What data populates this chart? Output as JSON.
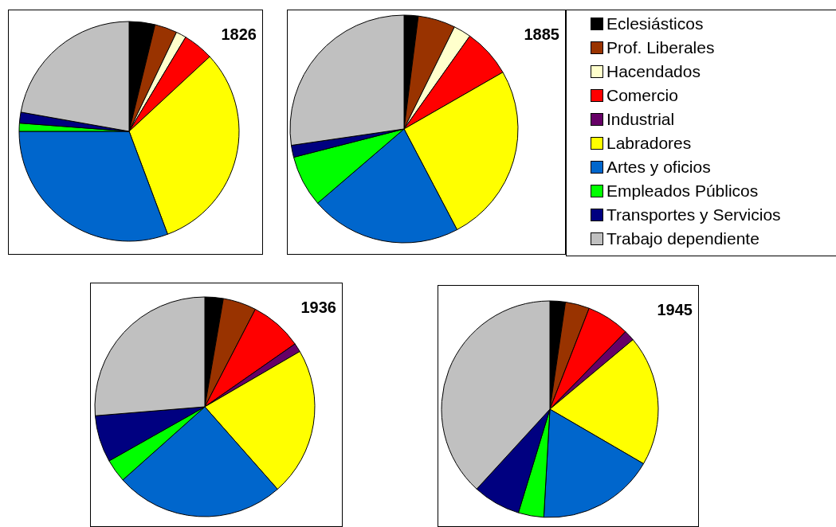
{
  "chart_data": [
    {
      "type": "pie",
      "title": "1826",
      "legend": false,
      "categories": [
        null,
        null,
        null,
        null,
        null,
        null,
        null,
        null,
        null,
        null
      ],
      "values": [
        3.8,
        3.3,
        1.5,
        4.5,
        0,
        31.2,
        30.7,
        1.2,
        1.6,
        22.2
      ],
      "colors": [
        "#000000",
        "#993300",
        "#ffffcc",
        "#ff0000",
        "#660066",
        "#ffff00",
        "#0066cc",
        "#00ff00",
        "#000080",
        "#c0c0c0"
      ]
    },
    {
      "type": "pie",
      "title": "1885",
      "legend": "right",
      "categories": [
        "Eclesiásticos",
        "Prof. Liberales",
        "Hacendados",
        "Comercio",
        "Industrial",
        "Labradores",
        "Artes y oficios",
        "Empleados Públicos",
        "Transportes y Servicios",
        "Trabajo dependiente"
      ],
      "values": [
        2,
        5.3,
        2.5,
        6.9,
        0,
        25.6,
        21.4,
        7.3,
        1.7,
        27.3
      ],
      "colors": [
        "#000000",
        "#993300",
        "#ffffcc",
        "#ff0000",
        "#660066",
        "#ffff00",
        "#0066cc",
        "#00ff00",
        "#000080",
        "#c0c0c0"
      ]
    },
    {
      "type": "pie",
      "title": "1936",
      "legend": false,
      "categories": [
        null,
        null,
        null,
        null,
        null,
        null,
        null,
        null,
        null,
        null
      ],
      "values": [
        2.7,
        4.9,
        0,
        7.7,
        1.3,
        21.9,
        24.9,
        3.4,
        6.9,
        26.3
      ],
      "colors": [
        "#000000",
        "#993300",
        "#ffffcc",
        "#ff0000",
        "#660066",
        "#ffff00",
        "#0066cc",
        "#00ff00",
        "#000080",
        "#c0c0c0"
      ]
    },
    {
      "type": "pie",
      "title": "1945",
      "legend": false,
      "categories": [
        null,
        null,
        null,
        null,
        null,
        null,
        null,
        null,
        null,
        null
      ],
      "values": [
        2.3,
        3.6,
        0,
        6.4,
        1.6,
        19.5,
        17.5,
        3.8,
        7.1,
        38.2
      ],
      "colors": [
        "#000000",
        "#993300",
        "#ffffcc",
        "#ff0000",
        "#660066",
        "#ffff00",
        "#0066cc",
        "#00ff00",
        "#000080",
        "#c0c0c0"
      ]
    }
  ]
}
